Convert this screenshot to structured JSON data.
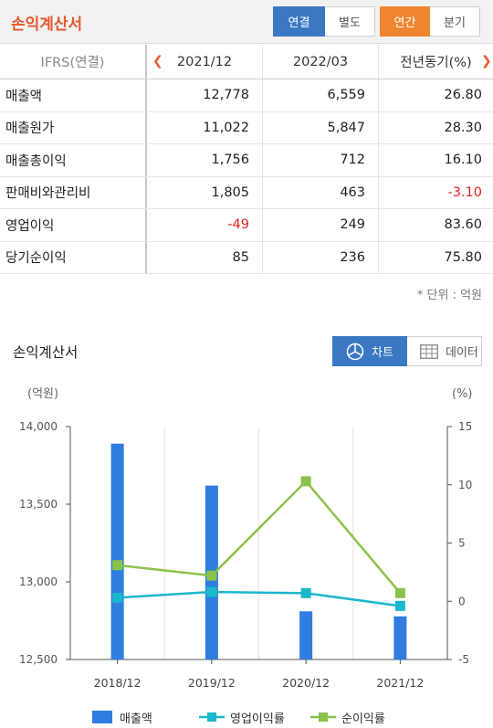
{
  "header": {
    "title": "손익계산서",
    "seg_consolidated": "연결",
    "seg_separate": "별도",
    "seg_annual": "연간",
    "seg_quarterly": "분기"
  },
  "table": {
    "columns": [
      "IFRS(연결)",
      "2021/12",
      "2022/03",
      "전년동기(%)"
    ],
    "rows": [
      {
        "label": "매출액",
        "v1": "12,778",
        "v2": "6,559",
        "v3": "26.80"
      },
      {
        "label": "매출원가",
        "v1": "11,022",
        "v2": "5,847",
        "v3": "28.30"
      },
      {
        "label": "매출총이익",
        "v1": "1,756",
        "v2": "712",
        "v3": "16.10"
      },
      {
        "label": "판매비와관리비",
        "v1": "1,805",
        "v2": "463",
        "v3": "-3.10"
      },
      {
        "label": "영업이익",
        "v1": "-49",
        "v2": "249",
        "v3": "83.60"
      },
      {
        "label": "당기순이익",
        "v1": "85",
        "v2": "236",
        "v3": "75.80"
      }
    ],
    "unit_note": "* 단위 : 억원"
  },
  "chart_section": {
    "title": "손익계산서",
    "btn_chart": "차트",
    "btn_data": "데이터"
  },
  "colors": {
    "accent_red": "#e8582e",
    "blue": "#3b78c4",
    "orange": "#f0852f",
    "bar": "#2f7de1",
    "op_margin": "#1cb7cc",
    "net_margin": "#8bc34a",
    "negative": "#e02020"
  },
  "chart_data": {
    "type": "bar",
    "categories": [
      "2018/12",
      "2019/12",
      "2020/12",
      "2021/12"
    ],
    "left_axis_unit": "(억원)",
    "right_axis_unit": "(%)",
    "left_ylim": [
      12500,
      14000
    ],
    "left_ticks": [
      "14,000",
      "13,500",
      "13,000",
      "12,500"
    ],
    "right_ylim": [
      -5,
      15
    ],
    "right_ticks": [
      "15",
      "10",
      "5",
      "0",
      "-5"
    ],
    "series": [
      {
        "name": "매출액",
        "kind": "bar",
        "axis": "left",
        "values": [
          13890,
          13620,
          12810,
          12778
        ]
      },
      {
        "name": "영업이익률",
        "kind": "line",
        "axis": "right",
        "values": [
          0.3,
          0.8,
          0.7,
          -0.4
        ]
      },
      {
        "name": "순이익률",
        "kind": "line",
        "axis": "right",
        "values": [
          3.1,
          2.2,
          10.3,
          0.7
        ]
      }
    ]
  }
}
